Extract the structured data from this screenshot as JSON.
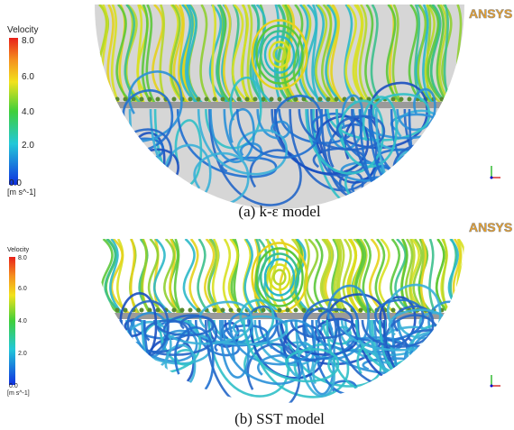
{
  "panels": [
    {
      "logo": "ANSYS",
      "legend_title": "Velocity",
      "legend_ticks": [
        "8.0",
        "6.0",
        "4.0",
        "2.0",
        "0.0"
      ],
      "legend_unit": "[m s^-1]",
      "caption": "(a) k-ε model"
    },
    {
      "logo": "ANSYS",
      "legend_title": "Velocity",
      "legend_ticks": [
        "8.0",
        "6.0",
        "4.0",
        "2.0",
        "0.0"
      ],
      "legend_unit": "[m s^-1]",
      "caption": "(b) SST model"
    }
  ]
}
